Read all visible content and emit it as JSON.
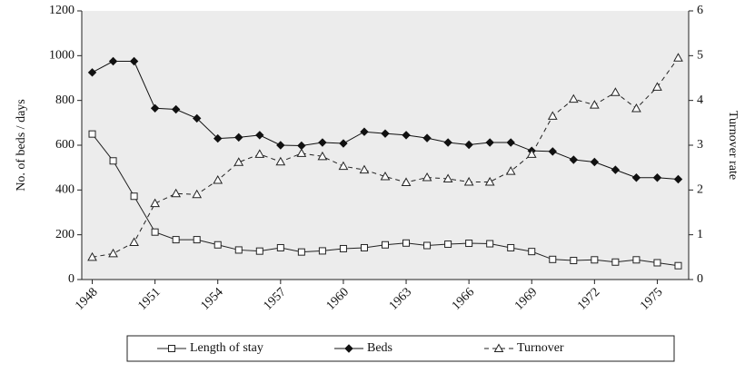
{
  "chart_data": {
    "type": "line",
    "y_label": "No. of beds / days",
    "y2_label": "Turnover rate",
    "x": [
      1948,
      1949,
      1950,
      1951,
      1952,
      1953,
      1954,
      1955,
      1956,
      1957,
      1958,
      1959,
      1960,
      1961,
      1962,
      1963,
      1964,
      1965,
      1966,
      1967,
      1968,
      1969,
      1970,
      1971,
      1972,
      1973,
      1974,
      1975,
      1976
    ],
    "xlim": [
      1947.5,
      1976.5
    ],
    "xticks": [
      1948,
      1951,
      1954,
      1957,
      1960,
      1963,
      1966,
      1969,
      1972,
      1975
    ],
    "ylim": [
      0,
      1200
    ],
    "yticks": [
      0,
      200,
      400,
      600,
      800,
      1000,
      1200
    ],
    "y2lim": [
      0,
      6
    ],
    "y2ticks": [
      0,
      1,
      2,
      3,
      4,
      5,
      6
    ],
    "series": [
      {
        "name": "Length of stay",
        "color": "#222222",
        "marker": "square",
        "dashed": false,
        "values": [
          650,
          530,
          372,
          212,
          178,
          178,
          155,
          132,
          127,
          142,
          123,
          128,
          138,
          142,
          155,
          163,
          152,
          158,
          162,
          160,
          142,
          125,
          90,
          85,
          88,
          78,
          88,
          75,
          62
        ]
      },
      {
        "name": "Beds",
        "color": "#111111",
        "marker": "diamond",
        "dashed": false,
        "values": [
          925,
          975,
          975,
          765,
          760,
          720,
          630,
          635,
          645,
          600,
          598,
          612,
          608,
          660,
          652,
          645,
          632,
          612,
          602,
          612,
          612,
          575,
          572,
          535,
          525,
          490,
          455,
          455,
          448
        ]
      },
      {
        "name": "Turnover",
        "color": "#222222",
        "marker": "triangle",
        "dashed": true,
        "axis": "y2",
        "values": [
          0.5,
          0.58,
          0.83,
          1.7,
          1.92,
          1.9,
          2.22,
          2.62,
          2.8,
          2.63,
          2.82,
          2.75,
          2.53,
          2.45,
          2.3,
          2.17,
          2.28,
          2.25,
          2.18,
          2.18,
          2.42,
          2.8,
          3.65,
          4.03,
          3.9,
          4.18,
          3.82,
          4.3,
          4.95
        ]
      }
    ]
  }
}
